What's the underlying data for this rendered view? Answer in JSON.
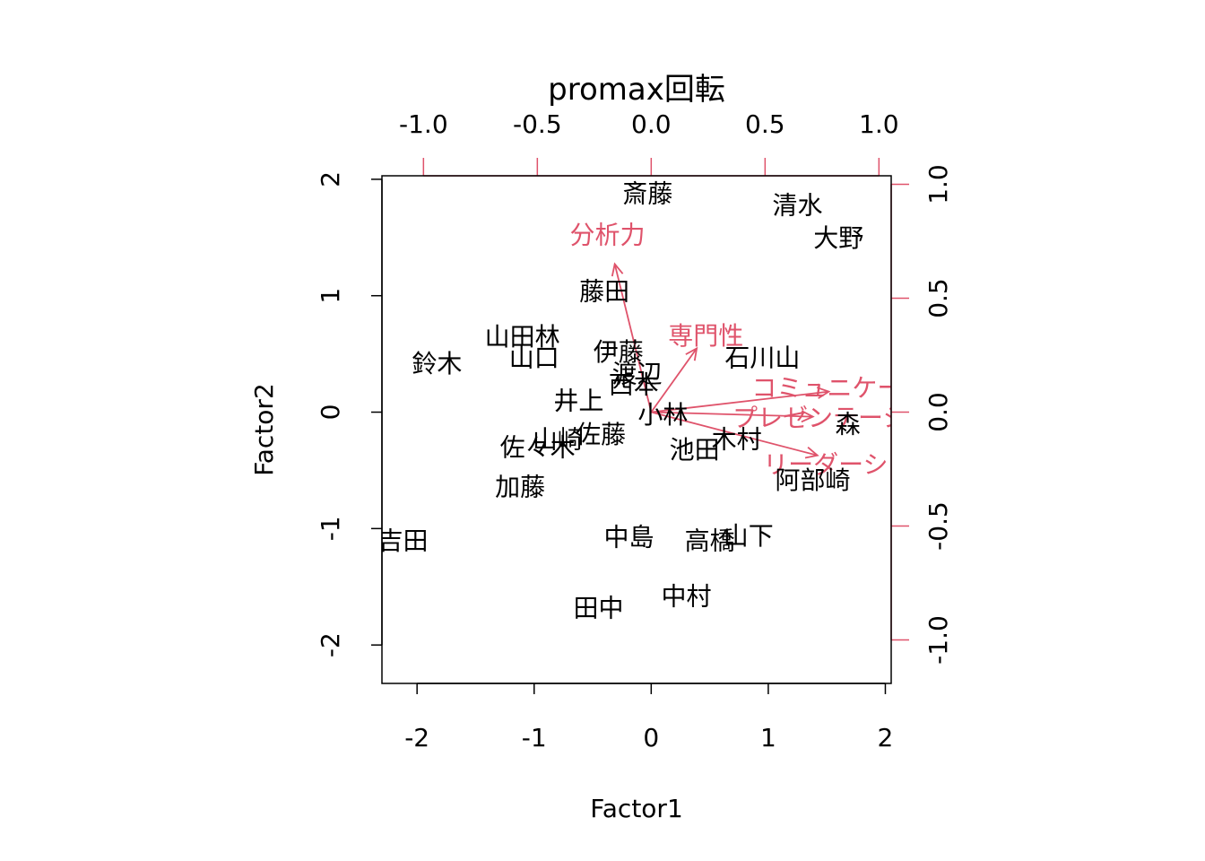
{
  "chart_data": {
    "type": "scatter",
    "subtype": "biplot",
    "title": "promax回転",
    "xlabel": "Factor1",
    "ylabel": "Factor2",
    "xlim": [
      -2.3,
      2.05
    ],
    "ylim": [
      -2.33,
      2.03
    ],
    "x_ticks": [
      "-2",
      "-1",
      "0",
      "1",
      "2"
    ],
    "y_ticks": [
      "-2",
      "-1",
      "0",
      "1",
      "2"
    ],
    "loading_axis": {
      "xlim": [
        -1.0,
        1.0
      ],
      "ylim": [
        -1.0,
        1.0
      ],
      "x_ticks": [
        "-1.0",
        "-0.5",
        "0.0",
        "0.5",
        "1.0"
      ],
      "y_ticks": [
        "-1.0",
        "-0.5",
        "0.0",
        "0.5",
        "1.0"
      ]
    },
    "points": [
      {
        "label": "斎藤",
        "x": -0.03,
        "y": 1.88
      },
      {
        "label": "清水",
        "x": 1.25,
        "y": 1.78
      },
      {
        "label": "大野",
        "x": 1.6,
        "y": 1.5
      },
      {
        "label": "藤田",
        "x": -0.4,
        "y": 1.04
      },
      {
        "label": "山田林",
        "x": -1.1,
        "y": 0.65
      },
      {
        "label": "山口",
        "x": -1.0,
        "y": 0.47
      },
      {
        "label": "鈴木",
        "x": -1.83,
        "y": 0.42
      },
      {
        "label": "伊藤",
        "x": -0.28,
        "y": 0.52
      },
      {
        "label": "石川山",
        "x": 0.95,
        "y": 0.47
      },
      {
        "label": "渡辺",
        "x": -0.12,
        "y": 0.33
      },
      {
        "label": "西本",
        "x": -0.15,
        "y": 0.24
      },
      {
        "label": "井上",
        "x": -0.62,
        "y": 0.1
      },
      {
        "label": "小林",
        "x": 0.1,
        "y": -0.02
      },
      {
        "label": "山崎",
        "x": -0.8,
        "y": -0.23
      },
      {
        "label": "佐藤",
        "x": -0.43,
        "y": -0.19
      },
      {
        "label": "佐々木",
        "x": -0.97,
        "y": -0.3
      },
      {
        "label": "木村",
        "x": 0.73,
        "y": -0.23
      },
      {
        "label": "池田",
        "x": 0.37,
        "y": -0.32
      },
      {
        "label": "森",
        "x": 1.68,
        "y": -0.1
      },
      {
        "label": "阿部崎",
        "x": 1.38,
        "y": -0.58
      },
      {
        "label": "加藤",
        "x": -1.12,
        "y": -0.64
      },
      {
        "label": "吉田",
        "x": -2.12,
        "y": -1.1
      },
      {
        "label": "中島",
        "x": -0.19,
        "y": -1.07
      },
      {
        "label": "高橋",
        "x": 0.5,
        "y": -1.1
      },
      {
        "label": "山下",
        "x": 0.83,
        "y": -1.06
      },
      {
        "label": "中村",
        "x": 0.3,
        "y": -1.58
      },
      {
        "label": "田中",
        "x": -0.45,
        "y": -1.68
      }
    ],
    "loadings": [
      {
        "label": "分析力",
        "x": -0.16,
        "y": 0.65
      },
      {
        "label": "専門性",
        "x": 0.2,
        "y": 0.28
      },
      {
        "label": "コミュニケーション",
        "x": 0.78,
        "y": 0.09
      },
      {
        "label": "プレゼンテーション",
        "x": 0.71,
        "y": -0.02
      },
      {
        "label": "リーダーシップ",
        "x": 0.73,
        "y": -0.19
      }
    ],
    "colors": {
      "points": "#000000",
      "loadings": "#DF536B",
      "frame": "#000000"
    }
  }
}
